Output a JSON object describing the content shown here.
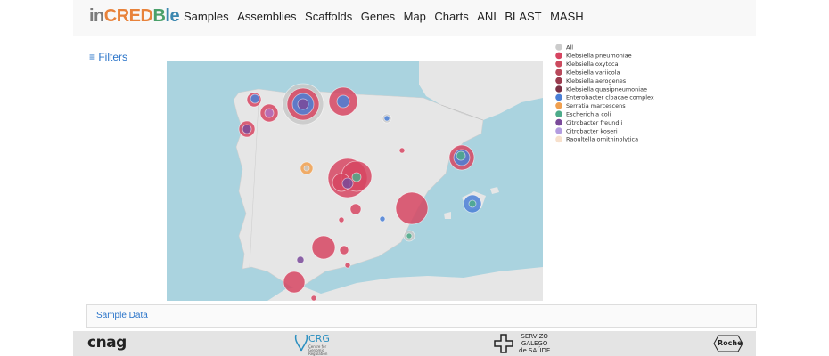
{
  "header": {
    "logo": [
      "in",
      "CRED",
      "B",
      "le"
    ],
    "logo_colors": [
      "#7a7a7a",
      "#e8823a",
      "#4aa06a",
      "#3c88b0"
    ],
    "nav": [
      "Samples",
      "Assemblies",
      "Scaffolds",
      "Genes",
      "Map",
      "Charts",
      "ANI",
      "BLAST",
      "MASH"
    ]
  },
  "filters": "≡ Filters",
  "legend": [
    {
      "name": "All",
      "color": "#cccccc"
    },
    {
      "name": "Klebsiella pneumoniae",
      "color": "#d64561"
    },
    {
      "name": "Klebsiella oxytoca",
      "color": "#cc4b5f"
    },
    {
      "name": "Klebsiella variicola",
      "color": "#b8495b"
    },
    {
      "name": "Klebsiella aerogenes",
      "color": "#9a3b4e"
    },
    {
      "name": "Klebsiella quasipneumoniae",
      "color": "#7b3145"
    },
    {
      "name": "Enterobacter cloacae complex",
      "color": "#4a7fd6"
    },
    {
      "name": "Serratia marcescens",
      "color": "#f0a050"
    },
    {
      "name": "Escherichia coli",
      "color": "#4dab8a"
    },
    {
      "name": "Citrobacter freundii",
      "color": "#7a4a9a"
    },
    {
      "name": "Citrobacter koseri",
      "color": "#b39ce0"
    },
    {
      "name": "Raoultella ornithinolytica",
      "color": "#f7e0cc"
    }
  ],
  "sample_data": "Sample Data",
  "footer": {
    "cnag": "cnag",
    "crg": "CRG",
    "crg_sub": "Centre for Genomic Regulation",
    "sergas": [
      "SERVIZO",
      "GALEGO",
      "de SAÚDE"
    ],
    "roche": "Roche"
  }
}
